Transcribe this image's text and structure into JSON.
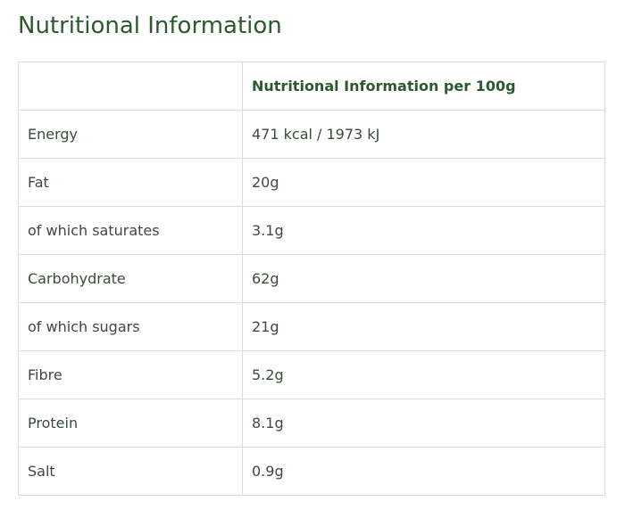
{
  "header": {
    "title": "Nutritional Information"
  },
  "table": {
    "column_header": "Nutritional Information per 100g",
    "rows": [
      [
        "Energy",
        "471 kcal / 1973 kJ"
      ],
      [
        "Fat",
        "20g"
      ],
      [
        "of which saturates",
        "3.1g"
      ],
      [
        "Carbohydrate",
        "62g"
      ],
      [
        "of which sugars",
        "21g"
      ],
      [
        "Fibre",
        "5.2g"
      ],
      [
        "Protein",
        "8.1g"
      ],
      [
        "Salt",
        "0.9g"
      ]
    ]
  }
}
